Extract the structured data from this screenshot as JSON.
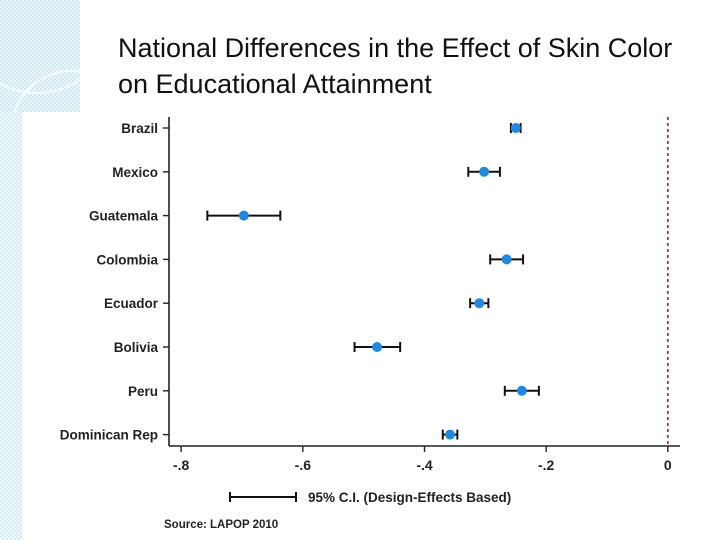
{
  "title": "National Differences in the Effect of Skin Color on Educational Attainment",
  "chart_data": {
    "type": "scatter",
    "subtype": "coefficient-plot-horizontal",
    "categories": [
      "Brazil",
      "Mexico",
      "Guatemala",
      "Colombia",
      "Ecuador",
      "Bolivia",
      "Peru",
      "Dominican Rep"
    ],
    "points": [
      {
        "country": "Brazil",
        "estimate": -0.25,
        "ci_low": -0.258,
        "ci_high": -0.242
      },
      {
        "country": "Mexico",
        "estimate": -0.302,
        "ci_low": -0.328,
        "ci_high": -0.276
      },
      {
        "country": "Guatemala",
        "estimate": -0.697,
        "ci_low": -0.757,
        "ci_high": -0.637
      },
      {
        "country": "Colombia",
        "estimate": -0.265,
        "ci_low": -0.292,
        "ci_high": -0.238
      },
      {
        "country": "Ecuador",
        "estimate": -0.31,
        "ci_low": -0.325,
        "ci_high": -0.295
      },
      {
        "country": "Bolivia",
        "estimate": -0.478,
        "ci_low": -0.515,
        "ci_high": -0.44
      },
      {
        "country": "Peru",
        "estimate": -0.24,
        "ci_low": -0.268,
        "ci_high": -0.212
      },
      {
        "country": "Dominican Rep",
        "estimate": -0.358,
        "ci_low": -0.37,
        "ci_high": -0.346
      }
    ],
    "x_ticks": [
      -0.8,
      -0.6,
      -0.4,
      -0.2,
      0
    ],
    "x_tick_labels": [
      "-.8",
      "-.6",
      "-.4",
      "-.2",
      "0"
    ],
    "xlim": [
      -0.82,
      0.02
    ],
    "reference_line": {
      "x": 0,
      "style": "dashed",
      "color": "#b0303a"
    },
    "legend": {
      "label": "95% C.I. (Design-Effects Based)",
      "placement": "bottom"
    },
    "source": "Source: LAPOP 2010",
    "point_color": "#1e88e5",
    "ci_color": "#111111",
    "grid": false
  }
}
